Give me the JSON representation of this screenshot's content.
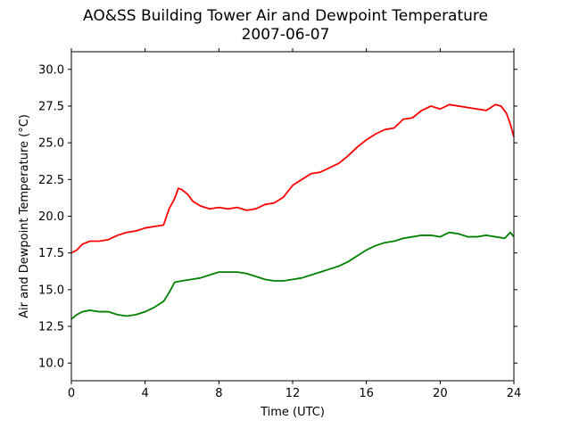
{
  "chart_data": {
    "type": "line",
    "title": "AO&SS Building Tower Air and Dewpoint Temperature",
    "subtitle": "2007-06-07",
    "xlabel": "Time (UTC)",
    "ylabel": "Air and Dewpoint Temperature (°C)",
    "xlim": [
      0,
      24
    ],
    "ylim": [
      8.8,
      31.2
    ],
    "xticks": [
      0,
      4,
      8,
      12,
      16,
      20,
      24
    ],
    "xtick_labels": [
      "0",
      "4",
      "8",
      "12",
      "16",
      "20",
      "24"
    ],
    "yticks": [
      10.0,
      12.5,
      15.0,
      17.5,
      20.0,
      22.5,
      25.0,
      27.5,
      30.0
    ],
    "ytick_labels": [
      "10.0",
      "12.5",
      "15.0",
      "17.5",
      "20.0",
      "22.5",
      "25.0",
      "27.5",
      "30.0"
    ],
    "grid": false,
    "series": [
      {
        "color": "#ff0000",
        "x": [
          0,
          0.3,
          0.6,
          1.0,
          1.5,
          2.0,
          2.5,
          3.0,
          3.5,
          4.0,
          4.5,
          5.0,
          5.3,
          5.6,
          5.8,
          6.0,
          6.3,
          6.6,
          7.0,
          7.5,
          8.0,
          8.5,
          9.0,
          9.5,
          10.0,
          10.5,
          11.0,
          11.5,
          12.0,
          12.5,
          13.0,
          13.5,
          14.0,
          14.5,
          15.0,
          15.5,
          16.0,
          16.5,
          17.0,
          17.5,
          18.0,
          18.5,
          19.0,
          19.5,
          20.0,
          20.5,
          21.0,
          21.5,
          22.0,
          22.5,
          23.0,
          23.3,
          23.6,
          23.8,
          24.0
        ],
        "values": [
          17.5,
          17.7,
          18.1,
          18.3,
          18.3,
          18.4,
          18.7,
          18.9,
          19.0,
          19.2,
          19.3,
          19.4,
          20.5,
          21.2,
          21.9,
          21.8,
          21.5,
          21.0,
          20.7,
          20.5,
          20.6,
          20.5,
          20.6,
          20.4,
          20.5,
          20.8,
          20.9,
          21.3,
          22.1,
          22.5,
          22.9,
          23.0,
          23.3,
          23.6,
          24.1,
          24.7,
          25.2,
          25.6,
          25.9,
          26.0,
          26.6,
          26.7,
          27.2,
          27.5,
          27.3,
          27.6,
          27.5,
          27.4,
          27.3,
          27.2,
          27.6,
          27.5,
          27.0,
          26.3,
          25.4
        ]
      },
      {
        "color": "#008000",
        "x": [
          0,
          0.3,
          0.6,
          1.0,
          1.5,
          2.0,
          2.5,
          3.0,
          3.5,
          4.0,
          4.5,
          5.0,
          5.3,
          5.6,
          6.0,
          6.5,
          7.0,
          7.5,
          8.0,
          8.5,
          9.0,
          9.5,
          10.0,
          10.5,
          11.0,
          11.5,
          12.0,
          12.5,
          13.0,
          13.5,
          14.0,
          14.5,
          15.0,
          15.5,
          16.0,
          16.5,
          17.0,
          17.5,
          18.0,
          18.5,
          19.0,
          19.5,
          20.0,
          20.5,
          21.0,
          21.5,
          22.0,
          22.5,
          23.0,
          23.5,
          23.8,
          24.0
        ],
        "values": [
          13.0,
          13.3,
          13.5,
          13.6,
          13.5,
          13.5,
          13.3,
          13.2,
          13.3,
          13.5,
          13.8,
          14.2,
          14.8,
          15.5,
          15.6,
          15.7,
          15.8,
          16.0,
          16.2,
          16.2,
          16.2,
          16.1,
          15.9,
          15.7,
          15.6,
          15.6,
          15.7,
          15.8,
          16.0,
          16.2,
          16.4,
          16.6,
          16.9,
          17.3,
          17.7,
          18.0,
          18.2,
          18.3,
          18.5,
          18.6,
          18.7,
          18.7,
          18.6,
          18.9,
          18.8,
          18.6,
          18.6,
          18.7,
          18.6,
          18.5,
          18.9,
          18.6
        ]
      }
    ]
  }
}
